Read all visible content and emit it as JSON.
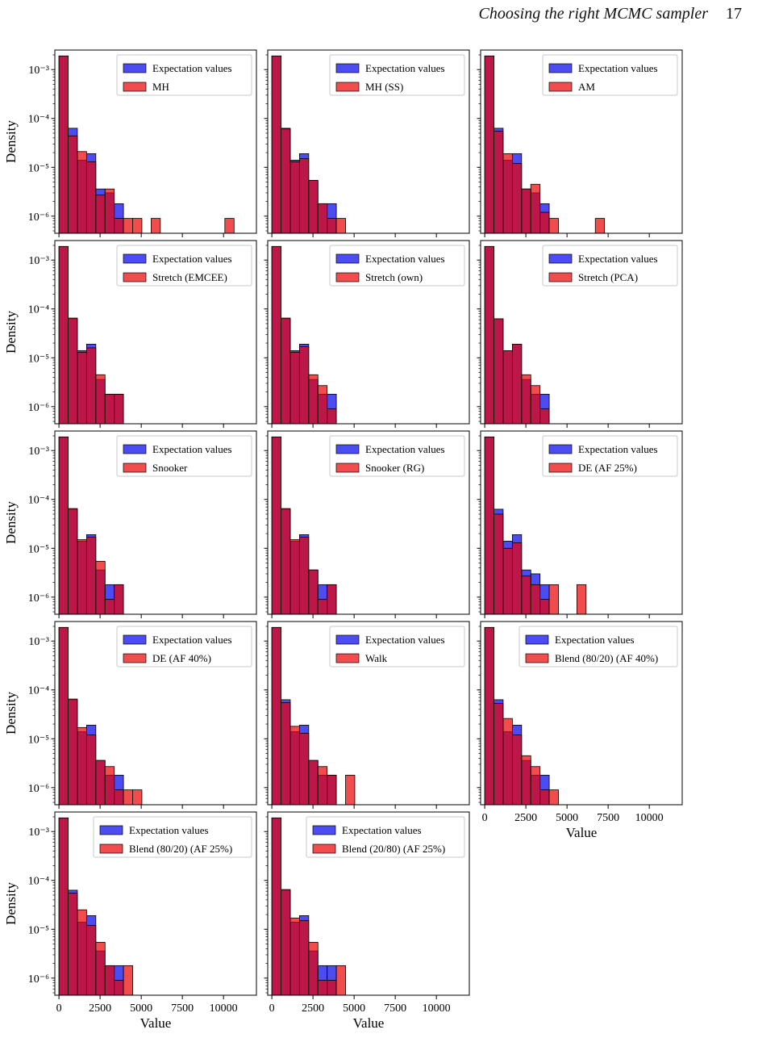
{
  "header": {
    "running_title": "Choosing the right MCMC sampler",
    "page_number": "17"
  },
  "colors": {
    "expectation": "#0000ee",
    "sample": "#ee0000",
    "overlap": "#b00030"
  },
  "chart_data": {
    "type": "bar",
    "description_axes": "log-scale y (Density), linear x (Value)",
    "shared": {
      "xlabel": "Value",
      "ylabel": "Density",
      "xlim": [
        -250,
        12000
      ],
      "ylim_log10": [
        -6.35,
        -2.6
      ],
      "yscale": "log",
      "xticks": [
        0,
        2500,
        5000,
        7500,
        10000
      ],
      "xtick_labels": [
        "0",
        "2500",
        "5000",
        "7500",
        "10000"
      ],
      "yticks_log10": [
        -3,
        -4,
        -5,
        -6
      ],
      "ytick_labels": [
        "10⁻³",
        "10⁻⁴",
        "10⁻⁵",
        "10⁻⁶"
      ],
      "bin_width": 560,
      "bin_start": 0,
      "legend_placement": "top-right",
      "grid": false
    },
    "panels": [
      {
        "legend": [
          "Expectation values",
          "MH"
        ],
        "expectation": [
          0.0019,
          6.3e-05,
          1.4e-05,
          1.9e-05,
          3.6e-06,
          3e-06,
          1.8e-06,
          0,
          0,
          0,
          0,
          0,
          0,
          0,
          0,
          0,
          0,
          0,
          0,
          0
        ],
        "sample": [
          0.0019,
          4.4e-05,
          2.1e-05,
          1.3e-05,
          2.7e-06,
          3.6e-06,
          9e-07,
          9e-07,
          9e-07,
          0,
          9e-07,
          0,
          0,
          0,
          0,
          0,
          0,
          0,
          9e-07,
          0
        ]
      },
      {
        "legend": [
          "Expectation values",
          "MH (SS)"
        ],
        "expectation": [
          0.0019,
          6.3e-05,
          1.4e-05,
          1.9e-05,
          5.4e-06,
          1.8e-06,
          1.8e-06,
          0,
          0,
          0,
          0,
          0,
          0,
          0,
          0,
          0,
          0,
          0,
          0,
          0
        ],
        "sample": [
          0.0019,
          6.1e-05,
          1.3e-05,
          1.5e-05,
          5.4e-06,
          1.8e-06,
          9e-07,
          9e-07,
          0,
          0,
          0,
          0,
          0,
          0,
          0,
          0,
          0,
          0,
          0,
          0
        ]
      },
      {
        "legend": [
          "Expectation values",
          "AM"
        ],
        "expectation": [
          0.0019,
          6.3e-05,
          1.4e-05,
          1.9e-05,
          3.6e-06,
          3e-06,
          1.8e-06,
          0,
          0,
          0,
          0,
          0,
          0,
          0,
          0,
          0,
          0,
          0,
          0,
          0
        ],
        "sample": [
          0.0019,
          5.5e-05,
          1.9e-05,
          1.2e-05,
          3.6e-06,
          4.5e-06,
          1.2e-06,
          9e-07,
          0,
          0,
          0,
          0,
          9e-07,
          0,
          0,
          0,
          0,
          0,
          0,
          0
        ]
      },
      {
        "legend": [
          "Expectation values",
          "Stretch (EMCEE)"
        ],
        "expectation": [
          0.0019,
          6.3e-05,
          1.4e-05,
          1.9e-05,
          3.6e-06,
          1.8e-06,
          1.8e-06,
          0,
          0,
          0,
          0,
          0,
          0,
          0,
          0,
          0,
          0,
          0,
          0,
          0
        ],
        "sample": [
          0.0019,
          6.5e-05,
          1.3e-05,
          1.6e-05,
          4.5e-06,
          1.8e-06,
          1.8e-06,
          0,
          0,
          0,
          0,
          0,
          0,
          0,
          0,
          0,
          0,
          0,
          0,
          0
        ]
      },
      {
        "legend": [
          "Expectation values",
          "Stretch (own)"
        ],
        "expectation": [
          0.0019,
          6.3e-05,
          1.4e-05,
          1.9e-05,
          3.6e-06,
          1.8e-06,
          1.8e-06,
          0,
          0,
          0,
          0,
          0,
          0,
          0,
          0,
          0,
          0,
          0,
          0,
          0
        ],
        "sample": [
          0.0019,
          6.5e-05,
          1.3e-05,
          1.7e-05,
          4.5e-06,
          2.7e-06,
          9e-07,
          0,
          0,
          0,
          0,
          0,
          0,
          0,
          0,
          0,
          0,
          0,
          0,
          0
        ]
      },
      {
        "legend": [
          "Expectation values",
          "Stretch (PCA)"
        ],
        "expectation": [
          0.0019,
          6.3e-05,
          1.4e-05,
          1.9e-05,
          3.6e-06,
          1.8e-06,
          1.8e-06,
          0,
          0,
          0,
          0,
          0,
          0,
          0,
          0,
          0,
          0,
          0,
          0,
          0
        ],
        "sample": [
          0.0019,
          6.3e-05,
          1.4e-05,
          1.9e-05,
          4.5e-06,
          2.7e-06,
          9e-07,
          0,
          0,
          0,
          0,
          0,
          0,
          0,
          0,
          0,
          0,
          0,
          0,
          0
        ]
      },
      {
        "legend": [
          "Expectation values",
          "Snooker"
        ],
        "expectation": [
          0.0019,
          6.3e-05,
          1.4e-05,
          1.9e-05,
          3.6e-06,
          1.8e-06,
          1.8e-06,
          0,
          0,
          0,
          0,
          0,
          0,
          0,
          0,
          0,
          0,
          0,
          0,
          0
        ],
        "sample": [
          0.0019,
          6.5e-05,
          1.5e-05,
          1.7e-05,
          5.4e-06,
          9e-07,
          1.8e-06,
          0,
          0,
          0,
          0,
          0,
          0,
          0,
          0,
          0,
          0,
          0,
          0,
          0
        ]
      },
      {
        "legend": [
          "Expectation values",
          "Snooker (RG)"
        ],
        "expectation": [
          0.0019,
          6.3e-05,
          1.4e-05,
          1.9e-05,
          3.6e-06,
          1.8e-06,
          1.8e-06,
          0,
          0,
          0,
          0,
          0,
          0,
          0,
          0,
          0,
          0,
          0,
          0,
          0
        ],
        "sample": [
          0.0019,
          6.5e-05,
          1.5e-05,
          1.7e-05,
          3.6e-06,
          9e-07,
          1.8e-06,
          0,
          0,
          0,
          0,
          0,
          0,
          0,
          0,
          0,
          0,
          0,
          0,
          0
        ]
      },
      {
        "legend": [
          "Expectation values",
          "DE (AF 25%)"
        ],
        "expectation": [
          0.0019,
          6.3e-05,
          1.4e-05,
          1.9e-05,
          3.6e-06,
          3e-06,
          1.8e-06,
          0,
          0,
          0,
          0,
          0,
          0,
          0,
          0,
          0,
          0,
          0,
          0,
          0
        ],
        "sample": [
          0.0019,
          5e-05,
          1e-05,
          1.3e-05,
          2.7e-06,
          1.8e-06,
          9e-07,
          1.8e-06,
          0,
          0,
          1.8e-06,
          0,
          0,
          0,
          0,
          0,
          0,
          0,
          0,
          0
        ]
      },
      {
        "legend": [
          "Expectation values",
          "DE (AF 40%)"
        ],
        "expectation": [
          0.0019,
          6.3e-05,
          1.4e-05,
          1.9e-05,
          3.6e-06,
          1.8e-06,
          1.8e-06,
          0,
          0,
          0,
          0,
          0,
          0,
          0,
          0,
          0,
          0,
          0,
          0,
          0
        ],
        "sample": [
          0.0019,
          6.5e-05,
          1.7e-05,
          1.2e-05,
          3.6e-06,
          2.7e-06,
          9e-07,
          9e-07,
          9e-07,
          0,
          0,
          0,
          0,
          0,
          0,
          0,
          0,
          0,
          0,
          0
        ]
      },
      {
        "legend": [
          "Expectation values",
          "Walk"
        ],
        "expectation": [
          0.0019,
          6.3e-05,
          1.4e-05,
          1.9e-05,
          3.6e-06,
          1.8e-06,
          1.8e-06,
          0,
          0,
          0,
          0,
          0,
          0,
          0,
          0,
          0,
          0,
          0,
          0,
          0
        ],
        "sample": [
          0.0019,
          5.5e-05,
          1.8e-05,
          1.3e-05,
          3.6e-06,
          2.7e-06,
          1.8e-06,
          0,
          1.8e-06,
          0,
          0,
          0,
          0,
          0,
          0,
          0,
          0,
          0,
          0,
          0
        ]
      },
      {
        "legend": [
          "Expectation values",
          "Blend (80/20) (AF 40%)"
        ],
        "expectation": [
          0.0019,
          6.3e-05,
          1.4e-05,
          1.9e-05,
          3.6e-06,
          1.8e-06,
          1.8e-06,
          0,
          0,
          0,
          0,
          0,
          0,
          0,
          0,
          0,
          0,
          0,
          0,
          0
        ],
        "sample": [
          0.0019,
          5.3e-05,
          2.6e-05,
          1.2e-05,
          4.5e-06,
          2.7e-06,
          9e-07,
          9e-07,
          0,
          0,
          0,
          0,
          0,
          0,
          0,
          0,
          0,
          0,
          0,
          0
        ]
      },
      {
        "legend": [
          "Expectation values",
          "Blend (80/20) (AF 25%)"
        ],
        "expectation": [
          0.0019,
          6.3e-05,
          1.4e-05,
          1.9e-05,
          3.6e-06,
          1.8e-06,
          1.8e-06,
          0,
          0,
          0,
          0,
          0,
          0,
          0,
          0,
          0,
          0,
          0,
          0,
          0
        ],
        "sample": [
          0.0019,
          5.5e-05,
          2.5e-05,
          1.2e-05,
          5.4e-06,
          1.8e-06,
          9e-07,
          1.8e-06,
          0,
          0,
          0,
          0,
          0,
          0,
          0,
          0,
          0,
          0,
          0,
          0
        ]
      },
      {
        "legend": [
          "Expectation values",
          "Blend (20/80) (AF 25%)"
        ],
        "expectation": [
          0.0019,
          6.3e-05,
          1.4e-05,
          1.9e-05,
          3.6e-06,
          1.8e-06,
          1.8e-06,
          0,
          0,
          0,
          0,
          0,
          0,
          0,
          0,
          0,
          0,
          0,
          0,
          0
        ],
        "sample": [
          0.0019,
          6.5e-05,
          1.7e-05,
          1.5e-05,
          5.4e-06,
          9e-07,
          9e-07,
          1.8e-06,
          0,
          0,
          0,
          0,
          0,
          0,
          0,
          0,
          0,
          0,
          0,
          0
        ]
      }
    ]
  }
}
